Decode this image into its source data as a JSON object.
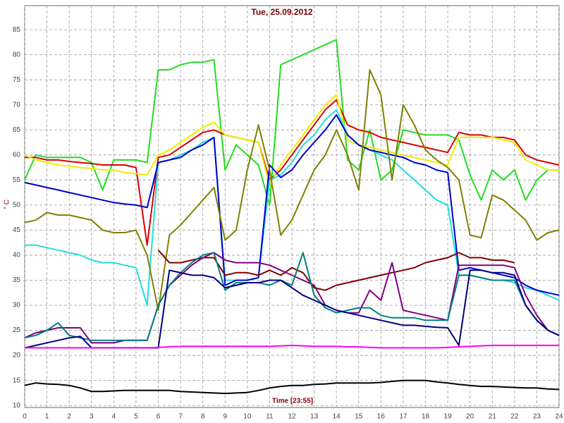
{
  "chart_data": {
    "type": "line",
    "title": "Tue, 25.09.2012",
    "ylabel": "° C",
    "xlabel": "Time [23:55]",
    "x": [
      0,
      0.5,
      1,
      1.5,
      2,
      2.5,
      3,
      3.5,
      4,
      4.5,
      5,
      5.5,
      6,
      6.5,
      7,
      7.5,
      8,
      8.5,
      9,
      9.5,
      10,
      10.5,
      11,
      11.5,
      12,
      12.5,
      13,
      13.5,
      14,
      14.5,
      15,
      15.5,
      16,
      16.5,
      17,
      17.5,
      18,
      18.5,
      19,
      19.5,
      20,
      20.5,
      21,
      21.5,
      22,
      22.5,
      23,
      23.5,
      24
    ],
    "xlim": [
      0,
      24
    ],
    "xticks": [
      0,
      1,
      2,
      3,
      4,
      5,
      6,
      7,
      8,
      9,
      10,
      11,
      12,
      13,
      14,
      15,
      16,
      17,
      18,
      19,
      20,
      21,
      22,
      23,
      24
    ],
    "ylim": [
      9.6,
      89.8
    ],
    "yticks": [
      10,
      15,
      20,
      25,
      30,
      35,
      40,
      45,
      50,
      55,
      60,
      65,
      70,
      75,
      80,
      85
    ],
    "grid": true,
    "series": [
      {
        "color": "#22dd22",
        "values": [
          55,
          60,
          59.5,
          59.5,
          59.5,
          59.5,
          58.5,
          53,
          59,
          59,
          59,
          58.5,
          77,
          77,
          78,
          78.5,
          78.5,
          79,
          57,
          62,
          60,
          58,
          50,
          78,
          79,
          80,
          81,
          82,
          83,
          59,
          57,
          65,
          55,
          57,
          65,
          64.5,
          64,
          64,
          64,
          63,
          56,
          51,
          57,
          55,
          57,
          51,
          55,
          57,
          57
        ]
      },
      {
        "color": "#dd0000",
        "values": [
          59.5,
          59.5,
          59,
          59,
          58.7,
          58.5,
          58.3,
          58,
          58,
          58,
          57.5,
          42,
          59.5,
          60,
          61.5,
          63,
          64.5,
          65,
          64,
          63.5,
          63,
          62.5,
          55,
          57,
          60,
          63,
          66,
          69,
          71,
          66,
          65,
          64.5,
          63.5,
          63,
          62.5,
          62,
          61.5,
          61,
          60.5,
          64.5,
          64,
          64,
          63.5,
          63.5,
          63,
          60,
          59,
          58.5,
          58
        ]
      },
      {
        "color": "#eeee00",
        "values": [
          60,
          59,
          58.5,
          58,
          57.8,
          57.5,
          57.3,
          57,
          57,
          56.5,
          56.3,
          56,
          60,
          61,
          62.5,
          64,
          65.5,
          66.5,
          64,
          63.5,
          63,
          62.5,
          54,
          58,
          61,
          64,
          67,
          70,
          72,
          63,
          62,
          61.5,
          61,
          60.5,
          60,
          59.5,
          59,
          58.5,
          58,
          63.5,
          63.5,
          63.5,
          63.5,
          63,
          62.5,
          59,
          58,
          57,
          57
        ]
      },
      {
        "color": "#22dddd",
        "values": [
          42,
          42,
          41.5,
          41,
          40.5,
          40,
          39,
          38.5,
          38.5,
          38,
          37.5,
          30,
          58.5,
          59,
          60,
          61,
          62.5,
          63.5,
          35,
          35,
          35,
          35.5,
          55,
          56,
          58.5,
          62,
          64,
          67,
          69,
          64,
          62,
          61,
          60,
          59,
          57,
          55,
          53,
          51,
          50,
          36,
          36,
          35.5,
          35,
          35,
          34.5,
          33.5,
          33,
          32,
          31
        ]
      },
      {
        "color": "#0000cc",
        "values": [
          54.5,
          54,
          53.5,
          53,
          52.5,
          52,
          51.5,
          51,
          50.5,
          50.2,
          50,
          49.5,
          58.5,
          59,
          59.5,
          61,
          62,
          63.5,
          34,
          35,
          35,
          35.5,
          58,
          55.5,
          57,
          60,
          62.5,
          65,
          68,
          64,
          62,
          61,
          60.5,
          60,
          59.5,
          58.5,
          58,
          57,
          56.5,
          37,
          37.5,
          37,
          36.5,
          36,
          35.5,
          34,
          33,
          32.5,
          32
        ]
      },
      {
        "color": "#808000",
        "values": [
          46.5,
          47,
          48.5,
          48,
          48,
          47.5,
          47,
          45,
          44.5,
          44.5,
          45,
          40,
          29,
          44,
          46,
          48.5,
          51,
          53.5,
          43,
          45,
          57,
          66,
          57,
          44,
          47,
          52,
          57,
          60,
          65,
          60,
          53,
          77,
          72,
          55,
          70,
          66,
          61,
          59,
          57.5,
          55,
          44,
          43.5,
          52,
          51,
          49,
          47,
          43,
          44.5,
          45
        ]
      },
      {
        "color": "#800000",
        "values": [
          null,
          null,
          null,
          null,
          null,
          null,
          null,
          null,
          null,
          null,
          null,
          null,
          41,
          38.5,
          38.5,
          39,
          39.5,
          39.5,
          36,
          36.5,
          36.5,
          36,
          37,
          36,
          37.5,
          36.5,
          33.5,
          33,
          34,
          34.5,
          35,
          35.5,
          36,
          36.5,
          37,
          37.5,
          38.5,
          39,
          39.5,
          40.5,
          39.5,
          39.5,
          39,
          39,
          38.5,
          null,
          null,
          null,
          null
        ]
      },
      {
        "color": "#800080",
        "values": [
          23.5,
          24.5,
          25,
          25.5,
          25.5,
          25.5,
          22.5,
          22.5,
          22.5,
          23,
          23,
          23,
          30,
          34,
          36,
          38,
          39.5,
          40.5,
          39,
          38.5,
          38.5,
          38.5,
          38,
          37,
          36,
          35,
          34,
          30,
          29,
          28.5,
          28.5,
          33,
          31,
          38.5,
          29,
          28.5,
          28,
          27.5,
          27,
          38,
          38,
          38,
          38,
          38,
          37.5,
          32,
          28,
          25,
          24
        ]
      },
      {
        "color": "#008080",
        "values": [
          23.5,
          24,
          25,
          26.5,
          24,
          23.5,
          23,
          23,
          23,
          23,
          23,
          23,
          30,
          34,
          36.5,
          38.5,
          40,
          40.5,
          33,
          34.5,
          34.5,
          34.5,
          34,
          35,
          34,
          40.5,
          32,
          29.5,
          28.5,
          29,
          29.5,
          29.5,
          28,
          27.5,
          27.5,
          27.5,
          27,
          27,
          27,
          36,
          36,
          35.5,
          35,
          35,
          35,
          30,
          27,
          25,
          24
        ]
      },
      {
        "color": "#000080",
        "values": [
          21.5,
          22,
          22.5,
          23,
          23.5,
          23.8,
          21.5,
          21.5,
          21.5,
          21.5,
          21.5,
          21.5,
          21.5,
          37,
          36.5,
          36,
          36,
          35.5,
          33.5,
          34,
          34.5,
          34.5,
          35,
          35,
          33.5,
          32,
          31,
          30,
          29,
          28.5,
          28,
          27.5,
          27,
          26.5,
          26,
          26,
          25.8,
          25.6,
          25.5,
          22,
          37,
          37,
          36.5,
          36.5,
          36,
          30,
          27,
          25,
          24
        ]
      },
      {
        "color": "#ff00ff",
        "values": [
          21.5,
          21.5,
          21.5,
          21.5,
          21.5,
          21.5,
          21.5,
          21.5,
          21.5,
          21.5,
          21.5,
          21.5,
          21.6,
          21.7,
          21.8,
          21.8,
          21.8,
          21.8,
          21.8,
          21.8,
          21.8,
          21.8,
          21.8,
          21.9,
          22,
          21.9,
          21.8,
          21.8,
          21.8,
          21.7,
          21.7,
          21.6,
          21.5,
          21.5,
          21.5,
          21.5,
          21.5,
          21.5,
          21.6,
          21.7,
          21.8,
          21.9,
          22,
          22,
          22,
          22,
          22,
          22,
          22
        ]
      },
      {
        "color": "#000000",
        "values": [
          14,
          14.5,
          14.3,
          14.2,
          14,
          13.5,
          12.8,
          12.8,
          12.9,
          13,
          13,
          13,
          13,
          13,
          12.8,
          12.7,
          12.6,
          12.5,
          12.4,
          12.5,
          12.6,
          13,
          13.5,
          13.8,
          14,
          14,
          14.2,
          14.3,
          14.5,
          14.5,
          14.5,
          14.5,
          14.6,
          14.8,
          15,
          15,
          15,
          14.7,
          14.5,
          14.2,
          14,
          13.8,
          13.8,
          13.7,
          13.6,
          13.5,
          13.5,
          13.3,
          13.2
        ]
      }
    ]
  }
}
